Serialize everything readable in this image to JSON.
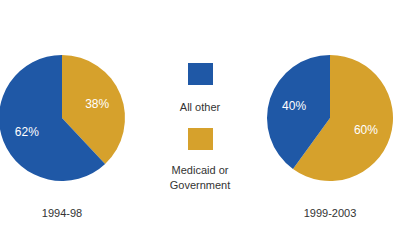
{
  "chart_data": {
    "type": "pie",
    "categories": [
      "All other",
      "Medicaid or Government"
    ],
    "colors": [
      "#1f58a6",
      "#d6a12c"
    ],
    "data_labels": true,
    "legend": "center",
    "series": [
      {
        "name": "1994-98",
        "values": [
          62,
          38
        ],
        "value_labels": [
          "62%",
          "38%"
        ]
      },
      {
        "name": "1999-2003",
        "values": [
          40,
          60
        ],
        "value_labels": [
          "40%",
          "60%"
        ]
      }
    ]
  }
}
